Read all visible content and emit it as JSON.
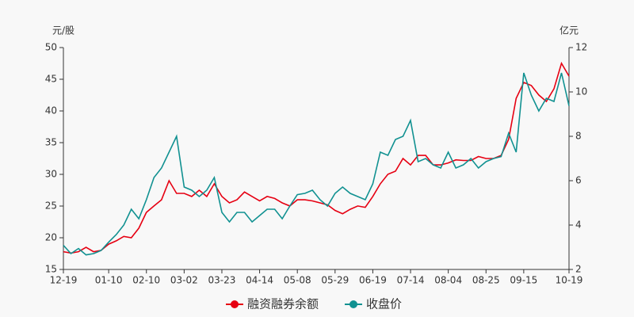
{
  "chart_data": {
    "type": "line",
    "y_label": "元/股",
    "y2_label": "亿元",
    "categories": [
      "12-19",
      null,
      null,
      null,
      null,
      null,
      "01-10",
      null,
      null,
      null,
      null,
      "02-10",
      null,
      null,
      null,
      null,
      "03-02",
      null,
      null,
      null,
      null,
      "03-23",
      null,
      null,
      null,
      null,
      "04-14",
      null,
      null,
      null,
      null,
      "05-08",
      null,
      null,
      null,
      null,
      "05-29",
      null,
      null,
      null,
      null,
      "06-19",
      null,
      null,
      null,
      null,
      "07-14",
      null,
      null,
      null,
      null,
      "08-04",
      null,
      null,
      null,
      null,
      "08-25",
      null,
      null,
      null,
      null,
      "09-15",
      null,
      null,
      null,
      null,
      null,
      "10-19"
    ],
    "series": [
      {
        "name": "融资融券余额",
        "color": "#e60012",
        "axis": "y2",
        "values": [
          2.8,
          2.74,
          2.8,
          3.0,
          2.8,
          2.86,
          3.14,
          3.29,
          3.49,
          3.43,
          3.86,
          4.57,
          4.86,
          5.14,
          6.0,
          5.43,
          5.43,
          5.29,
          5.57,
          5.29,
          5.86,
          5.29,
          5.0,
          5.14,
          5.49,
          5.29,
          5.09,
          5.29,
          5.2,
          5.0,
          4.86,
          5.14,
          5.14,
          5.09,
          5.0,
          4.91,
          4.66,
          4.51,
          4.71,
          4.86,
          4.8,
          5.29,
          5.86,
          6.29,
          6.43,
          7.0,
          6.71,
          7.14,
          7.14,
          6.71,
          6.71,
          6.8,
          6.94,
          6.91,
          6.91,
          7.09,
          7.0,
          7.0,
          7.14,
          7.86,
          9.71,
          10.43,
          10.29,
          9.86,
          9.57,
          10.14,
          11.29,
          10.71
        ]
      },
      {
        "name": "收盘价",
        "color": "#119191",
        "values": [
          18.8,
          17.5,
          18.3,
          17.3,
          17.5,
          18.0,
          19.3,
          20.5,
          22.0,
          24.5,
          23.0,
          26.0,
          29.5,
          31.0,
          33.5,
          36.0,
          28.0,
          27.5,
          26.5,
          27.5,
          29.5,
          24.0,
          22.5,
          24.0,
          24.0,
          22.5,
          23.5,
          24.5,
          24.5,
          23.0,
          25.0,
          26.8,
          27.0,
          27.5,
          26.0,
          25.0,
          27.0,
          28.0,
          27.0,
          26.5,
          26.0,
          28.5,
          33.5,
          33.0,
          35.5,
          36.0,
          38.5,
          32.0,
          32.5,
          31.5,
          31.0,
          33.5,
          31.0,
          31.5,
          32.5,
          31.0,
          32.0,
          32.5,
          32.8,
          36.5,
          33.5,
          46.0,
          42.5,
          40.0,
          42.0,
          41.5,
          46.0,
          40.8
        ]
      }
    ],
    "ylim": [
      15,
      50
    ],
    "yticks": [
      15,
      20,
      25,
      30,
      35,
      40,
      45,
      50
    ],
    "y2lim": [
      2,
      12
    ],
    "y2ticks": [
      2,
      4,
      6,
      8,
      10,
      12
    ],
    "grid": false
  }
}
